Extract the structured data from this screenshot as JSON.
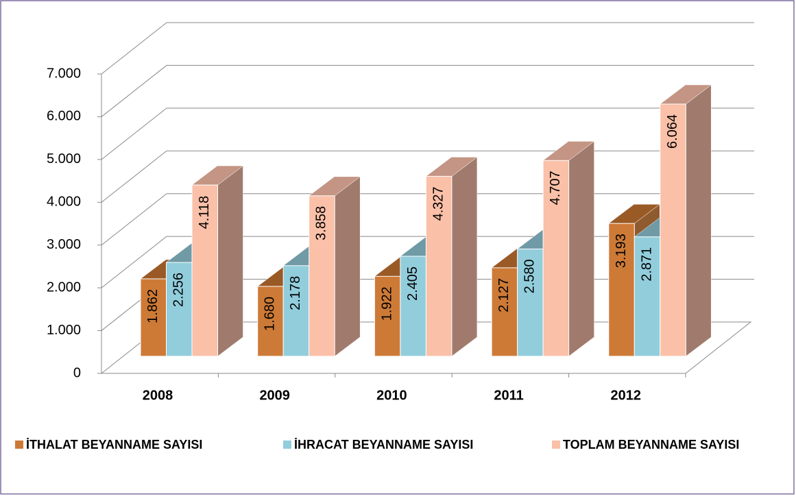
{
  "chart_data": {
    "type": "bar3d",
    "categories": [
      "2008",
      "2009",
      "2010",
      "2011",
      "2012"
    ],
    "series": [
      {
        "name": "İTHALAT BEYANNAME SAYISI",
        "color": "#cd7a37",
        "top_color": "#9a5a26",
        "side_color": "#8f5a2e",
        "values": [
          1862,
          1680,
          1922,
          2127,
          3193
        ],
        "value_labels": [
          "1.862",
          "1.680",
          "1.922",
          "2.127",
          "3.193"
        ]
      },
      {
        "name": "İHRACAT BEYANNAME SAYISI",
        "color": "#92cddc",
        "top_color": "#6f9aa6",
        "side_color": "#6a8f99",
        "values": [
          2256,
          2178,
          2405,
          2580,
          2871
        ],
        "value_labels": [
          "2.256",
          "2.178",
          "2.405",
          "2.580",
          "2.871"
        ]
      },
      {
        "name": "TOPLAM BEYANNAME SAYISI",
        "color": "#fac0a8",
        "top_color": "#c49584",
        "side_color": "#a07b6d",
        "values": [
          4118,
          3858,
          4327,
          4707,
          6064
        ],
        "value_labels": [
          "4.118",
          "3.858",
          "4.327",
          "4.707",
          "6.064"
        ]
      }
    ],
    "ylim": [
      0,
      7000
    ],
    "yticks": [
      0,
      {
        "value": 1000,
        "label": "1.000"
      },
      {
        "value": 2000,
        "label": "2.000"
      },
      {
        "value": 3000,
        "label": "3.000"
      },
      {
        "value": 4000,
        "label": "4.000"
      },
      {
        "value": 5000,
        "label": "5.000"
      },
      {
        "value": 6000,
        "label": "6.000"
      },
      {
        "value": 7000,
        "label": "7.000"
      }
    ],
    "grid": true,
    "legend": "bottom"
  }
}
